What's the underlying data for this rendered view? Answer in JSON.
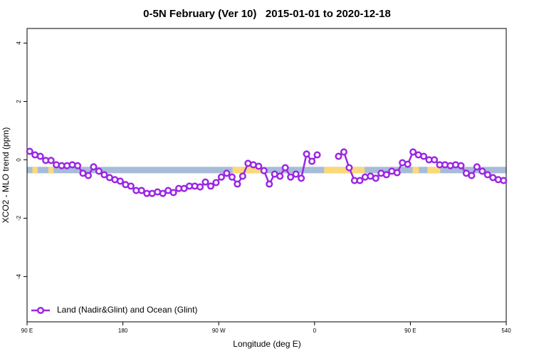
{
  "chart_data": {
    "type": "line",
    "title": "0-5N February (Ver 10)   2015-01-01 to 2020-12-18",
    "xlabel": "Longitude (deg E)",
    "ylabel": "XCO2 - MLO trend (ppm)",
    "xlim": [
      90,
      540
    ],
    "ylim": [
      -5.55,
      4.5
    ],
    "xticks": [
      {
        "value": 90,
        "label": "90 E"
      },
      180,
      {
        "value": 270,
        "label": "90 W"
      },
      {
        "value": 360,
        "label": "0"
      },
      {
        "value": 450,
        "label": "90 E"
      },
      540
    ],
    "yticks": [
      4,
      2,
      0,
      -2,
      -4
    ],
    "legend": "bottom-left",
    "band": {
      "range": [
        -0.46,
        -0.24
      ],
      "ocean_color": "#a7bcd8",
      "land_color": "#fbd97a",
      "land": [
        [
          95,
          100
        ],
        [
          110,
          115
        ],
        [
          283,
          312
        ],
        [
          369,
          407
        ],
        [
          452,
          458
        ],
        [
          466,
          478
        ]
      ]
    },
    "x": [
      92.5,
      97.5,
      102.5,
      107.5,
      112.5,
      117.5,
      122.5,
      127.5,
      132.5,
      137.5,
      142.5,
      147.5,
      152.5,
      157.5,
      162.5,
      167.5,
      172.5,
      177.5,
      182.5,
      187.5,
      192.5,
      197.5,
      202.5,
      207.5,
      212.5,
      217.5,
      222.5,
      227.5,
      232.5,
      237.5,
      242.5,
      247.5,
      252.5,
      257.5,
      262.5,
      267.5,
      272.5,
      277.5,
      282.5,
      287.5,
      292.5,
      297.5,
      302.5,
      307.5,
      312.5,
      317.5,
      322.5,
      327.5,
      332.5,
      337.5,
      342.5,
      347.5,
      352.5,
      357.5,
      362.5,
      367.5,
      372.5,
      377.5,
      382.5,
      387.5,
      392.5,
      397.5,
      402.5,
      407.5,
      412.5,
      417.5,
      422.5,
      427.5,
      432.5,
      437.5,
      442.5,
      447.5,
      452.5,
      457.5,
      462.5,
      467.5,
      472.5,
      477.5,
      482.5,
      487.5,
      492.5,
      497.5,
      502.5,
      507.5,
      512.5,
      517.5,
      522.5,
      527.5,
      532.5,
      537.5
    ],
    "series": [
      {
        "name": "Land (Nadir&Glint) and Ocean (Glint)",
        "color": "#9b27e3",
        "values": [
          0.29,
          0.17,
          0.12,
          -0.02,
          -0.02,
          -0.17,
          -0.2,
          -0.2,
          -0.17,
          -0.2,
          -0.46,
          -0.54,
          -0.24,
          -0.39,
          -0.51,
          -0.61,
          -0.68,
          -0.73,
          -0.85,
          -0.9,
          -1.05,
          -1.05,
          -1.15,
          -1.15,
          -1.1,
          -1.15,
          -1.05,
          -1.12,
          -0.98,
          -0.98,
          -0.9,
          -0.9,
          -0.93,
          -0.76,
          -0.9,
          -0.78,
          -0.59,
          -0.46,
          -0.59,
          -0.83,
          -0.56,
          -0.12,
          -0.17,
          -0.22,
          -0.37,
          -0.83,
          -0.49,
          -0.56,
          -0.27,
          -0.59,
          -0.49,
          -0.63,
          0.2,
          -0.05,
          0.17,
          null,
          null,
          null,
          0.12,
          0.27,
          -0.27,
          -0.71,
          -0.71,
          -0.59,
          -0.56,
          -0.63,
          -0.46,
          -0.51,
          -0.39,
          -0.44,
          -0.1,
          -0.15,
          0.27,
          0.17,
          0.12,
          0,
          0,
          -0.17,
          -0.17,
          -0.2,
          -0.17,
          -0.2,
          -0.46,
          -0.54,
          -0.24,
          -0.39,
          -0.51,
          -0.61,
          -0.68,
          -0.71
        ]
      }
    ]
  }
}
